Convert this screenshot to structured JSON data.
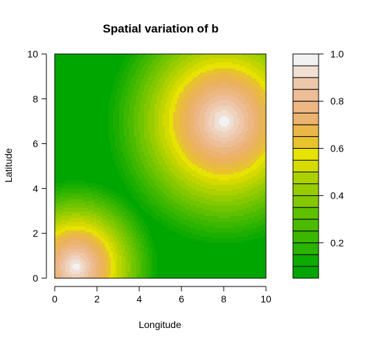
{
  "chart_data": {
    "type": "heatmap",
    "title": "Spatial variation of b",
    "xlabel": "Longitude",
    "ylabel": "Latitude",
    "xlim": [
      0,
      10
    ],
    "ylim": [
      0,
      10
    ],
    "x_ticks": [
      "0",
      "2",
      "4",
      "6",
      "8",
      "10"
    ],
    "y_ticks": [
      "0",
      "2",
      "4",
      "6",
      "8",
      "10"
    ],
    "field": {
      "description_of_values": "filled contour of b over longitude/latitude; two peaks of b = 1.0",
      "peaks": [
        {
          "x": 8,
          "y": 7,
          "value": 1.0,
          "radius_to_min": 5.7
        },
        {
          "x": 1,
          "y": 0.5,
          "value": 1.0,
          "radius_to_min": 4.0
        }
      ],
      "min_value": 0.05,
      "max_value": 1.0
    },
    "legend": {
      "placement": "right",
      "range": [
        0.05,
        1.0
      ],
      "levels": 19,
      "tick_labels": [
        "0.2",
        "0.4",
        "0.6",
        "0.8",
        "1.0"
      ],
      "tick_values": [
        0.2,
        0.4,
        0.6,
        0.8,
        1.0
      ]
    },
    "colors": [
      "#00A600",
      "#0DAA00",
      "#1BAE00",
      "#2AB300",
      "#3BB700",
      "#4CBB00",
      "#5EC000",
      "#70C400",
      "#83C800",
      "#97CD00",
      "#ABD100",
      "#C0D500",
      "#D5DA00",
      "#E6E300",
      "#E8C32E",
      "#E9B846",
      "#EAB35B",
      "#EBB36F",
      "#ECB782",
      "#EDBE96",
      "#EEC7AA",
      "#EFD2BE",
      "#F0DFD2",
      "#F2F2F2"
    ]
  }
}
